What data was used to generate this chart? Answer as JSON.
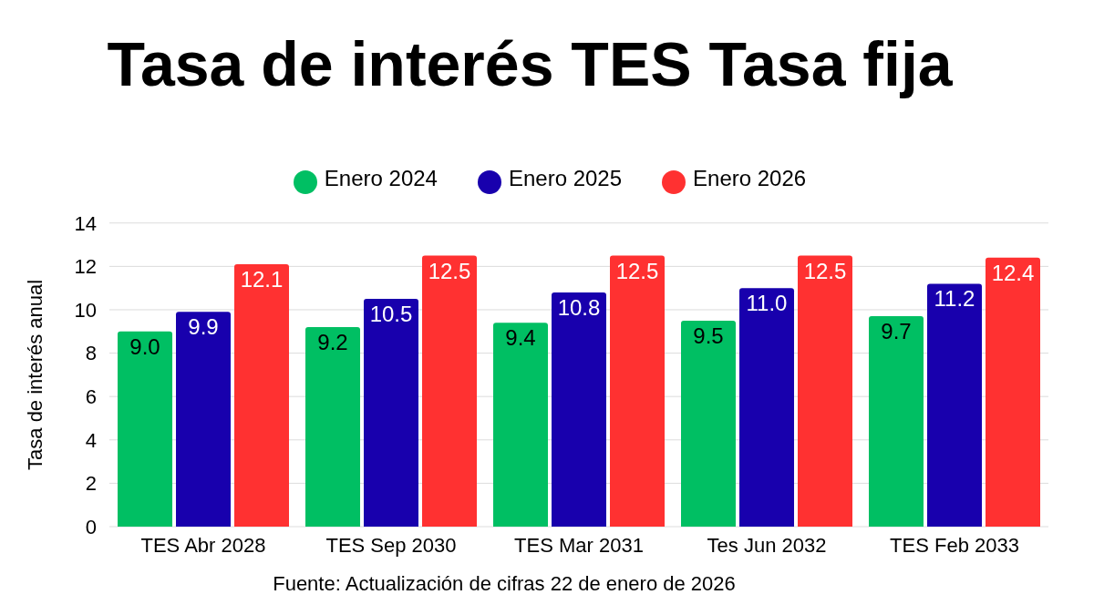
{
  "chart_data": {
    "type": "bar",
    "title": "Tasa de interés TES Tasa fija",
    "categories": [
      "TES Abr 2028",
      "TES Sep 2030",
      "TES Mar 2031",
      "Tes Jun 2032",
      "TES Feb 2033"
    ],
    "series": [
      {
        "name": "Enero 2024",
        "color": "#00bf63",
        "values": [
          9.0,
          9.2,
          9.4,
          9.5,
          9.7
        ],
        "value_labels": [
          "9.0",
          "9.2",
          "9.4",
          "9.5",
          "9.7"
        ]
      },
      {
        "name": "Enero 2025",
        "color": "#1800ad",
        "values": [
          9.9,
          10.5,
          10.8,
          11.0,
          11.2
        ],
        "value_labels": [
          "9.9",
          "10.5",
          "10.8",
          "11.0",
          "11.2"
        ]
      },
      {
        "name": "Enero 2026",
        "color": "#ff3131",
        "values": [
          12.1,
          12.5,
          12.5,
          12.5,
          12.4
        ],
        "value_labels": [
          "12.1",
          "12.5",
          "12.5",
          "12.5",
          "12.4"
        ]
      }
    ],
    "ylabel": "Tasa de interés anual",
    "ylim": [
      0,
      14
    ],
    "yticks": [
      0,
      2,
      4,
      6,
      8,
      10,
      12,
      14
    ],
    "grid": "y",
    "legend": "top",
    "annotations": [
      "Fuente: Actualización de cifras 22 de enero de 2026"
    ]
  }
}
